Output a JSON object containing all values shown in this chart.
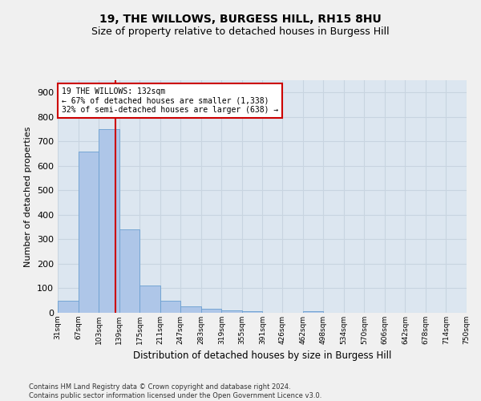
{
  "title1": "19, THE WILLOWS, BURGESS HILL, RH15 8HU",
  "title2": "Size of property relative to detached houses in Burgess Hill",
  "xlabel": "Distribution of detached houses by size in Burgess Hill",
  "ylabel": "Number of detached properties",
  "footnote": "Contains HM Land Registry data © Crown copyright and database right 2024.\nContains public sector information licensed under the Open Government Licence v3.0.",
  "bin_edges": [
    31,
    67,
    103,
    139,
    175,
    211,
    247,
    283,
    319,
    355,
    391,
    426,
    462,
    498,
    534,
    570,
    606,
    642,
    678,
    714,
    750
  ],
  "bar_heights": [
    50,
    660,
    750,
    340,
    110,
    50,
    25,
    15,
    10,
    8,
    0,
    0,
    8,
    0,
    0,
    0,
    0,
    0,
    0,
    0
  ],
  "bar_color": "#aec6e8",
  "bar_edge_color": "#6a9fd0",
  "grid_color": "#c8d4e0",
  "property_size": 132,
  "property_line_color": "#cc0000",
  "annotation_line1": "19 THE WILLOWS: 132sqm",
  "annotation_line2": "← 67% of detached houses are smaller (1,338)",
  "annotation_line3": "32% of semi-detached houses are larger (638) →",
  "annotation_box_color": "#ffffff",
  "annotation_border_color": "#cc0000",
  "ylim": [
    0,
    950
  ],
  "yticks": [
    0,
    100,
    200,
    300,
    400,
    500,
    600,
    700,
    800,
    900
  ],
  "bg_color": "#dce6f0",
  "fig_bg_color": "#f0f0f0",
  "title1_fontsize": 10,
  "title2_fontsize": 9
}
